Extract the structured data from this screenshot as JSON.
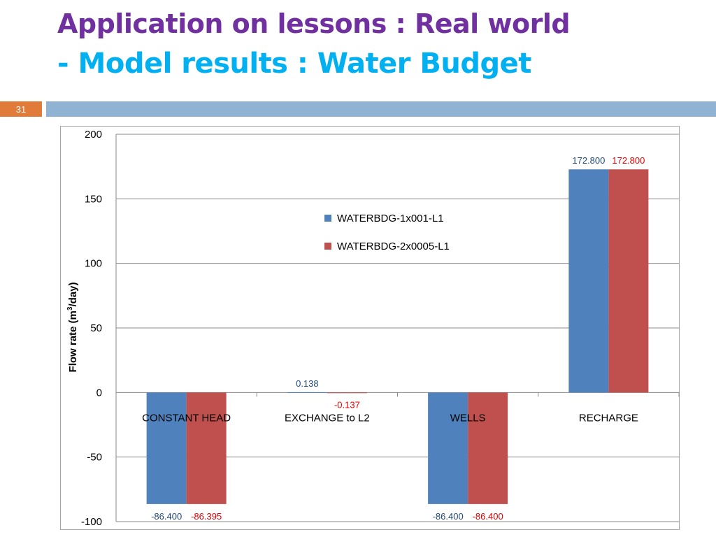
{
  "slide": {
    "title_line1": "Application on lessons : Real world",
    "title_line2": "- Model results : Water Budget",
    "slide_number": "31"
  },
  "colors": {
    "title1": "#7030a0",
    "title2": "#00b0f0",
    "band": "#90b3d4",
    "slide_number_bg": "#e07b39",
    "series1": "#4f81bd",
    "series2": "#c0504d",
    "label1": "#1f497d",
    "label2": "#e00000"
  },
  "chart_data": {
    "type": "bar",
    "categories": [
      "CONSTANT HEAD",
      "EXCHANGE to L2",
      "WELLS",
      "RECHARGE"
    ],
    "series": [
      {
        "name": "WATERBDG-1x001-L1",
        "values": [
          -86.4,
          0.138,
          -86.4,
          172.8
        ],
        "labels": [
          "-86.400",
          "0.138",
          "-86.400",
          "172.800"
        ]
      },
      {
        "name": "WATERBDG-2x0005-L1",
        "values": [
          -86.395,
          -0.137,
          -86.4,
          172.8
        ],
        "labels": [
          "-86.395",
          "-0.137",
          "-86.400",
          "172.800"
        ]
      }
    ],
    "yticks": [
      "200",
      "150",
      "100",
      "50",
      "0",
      "-50",
      "-100"
    ],
    "ylabel_prefix": "Flow rate (m",
    "ylabel_sup": "3",
    "ylabel_suffix": "/day)",
    "xlabel": "",
    "ylim": [
      -100,
      200
    ],
    "grid": true,
    "legend_position": "center"
  }
}
